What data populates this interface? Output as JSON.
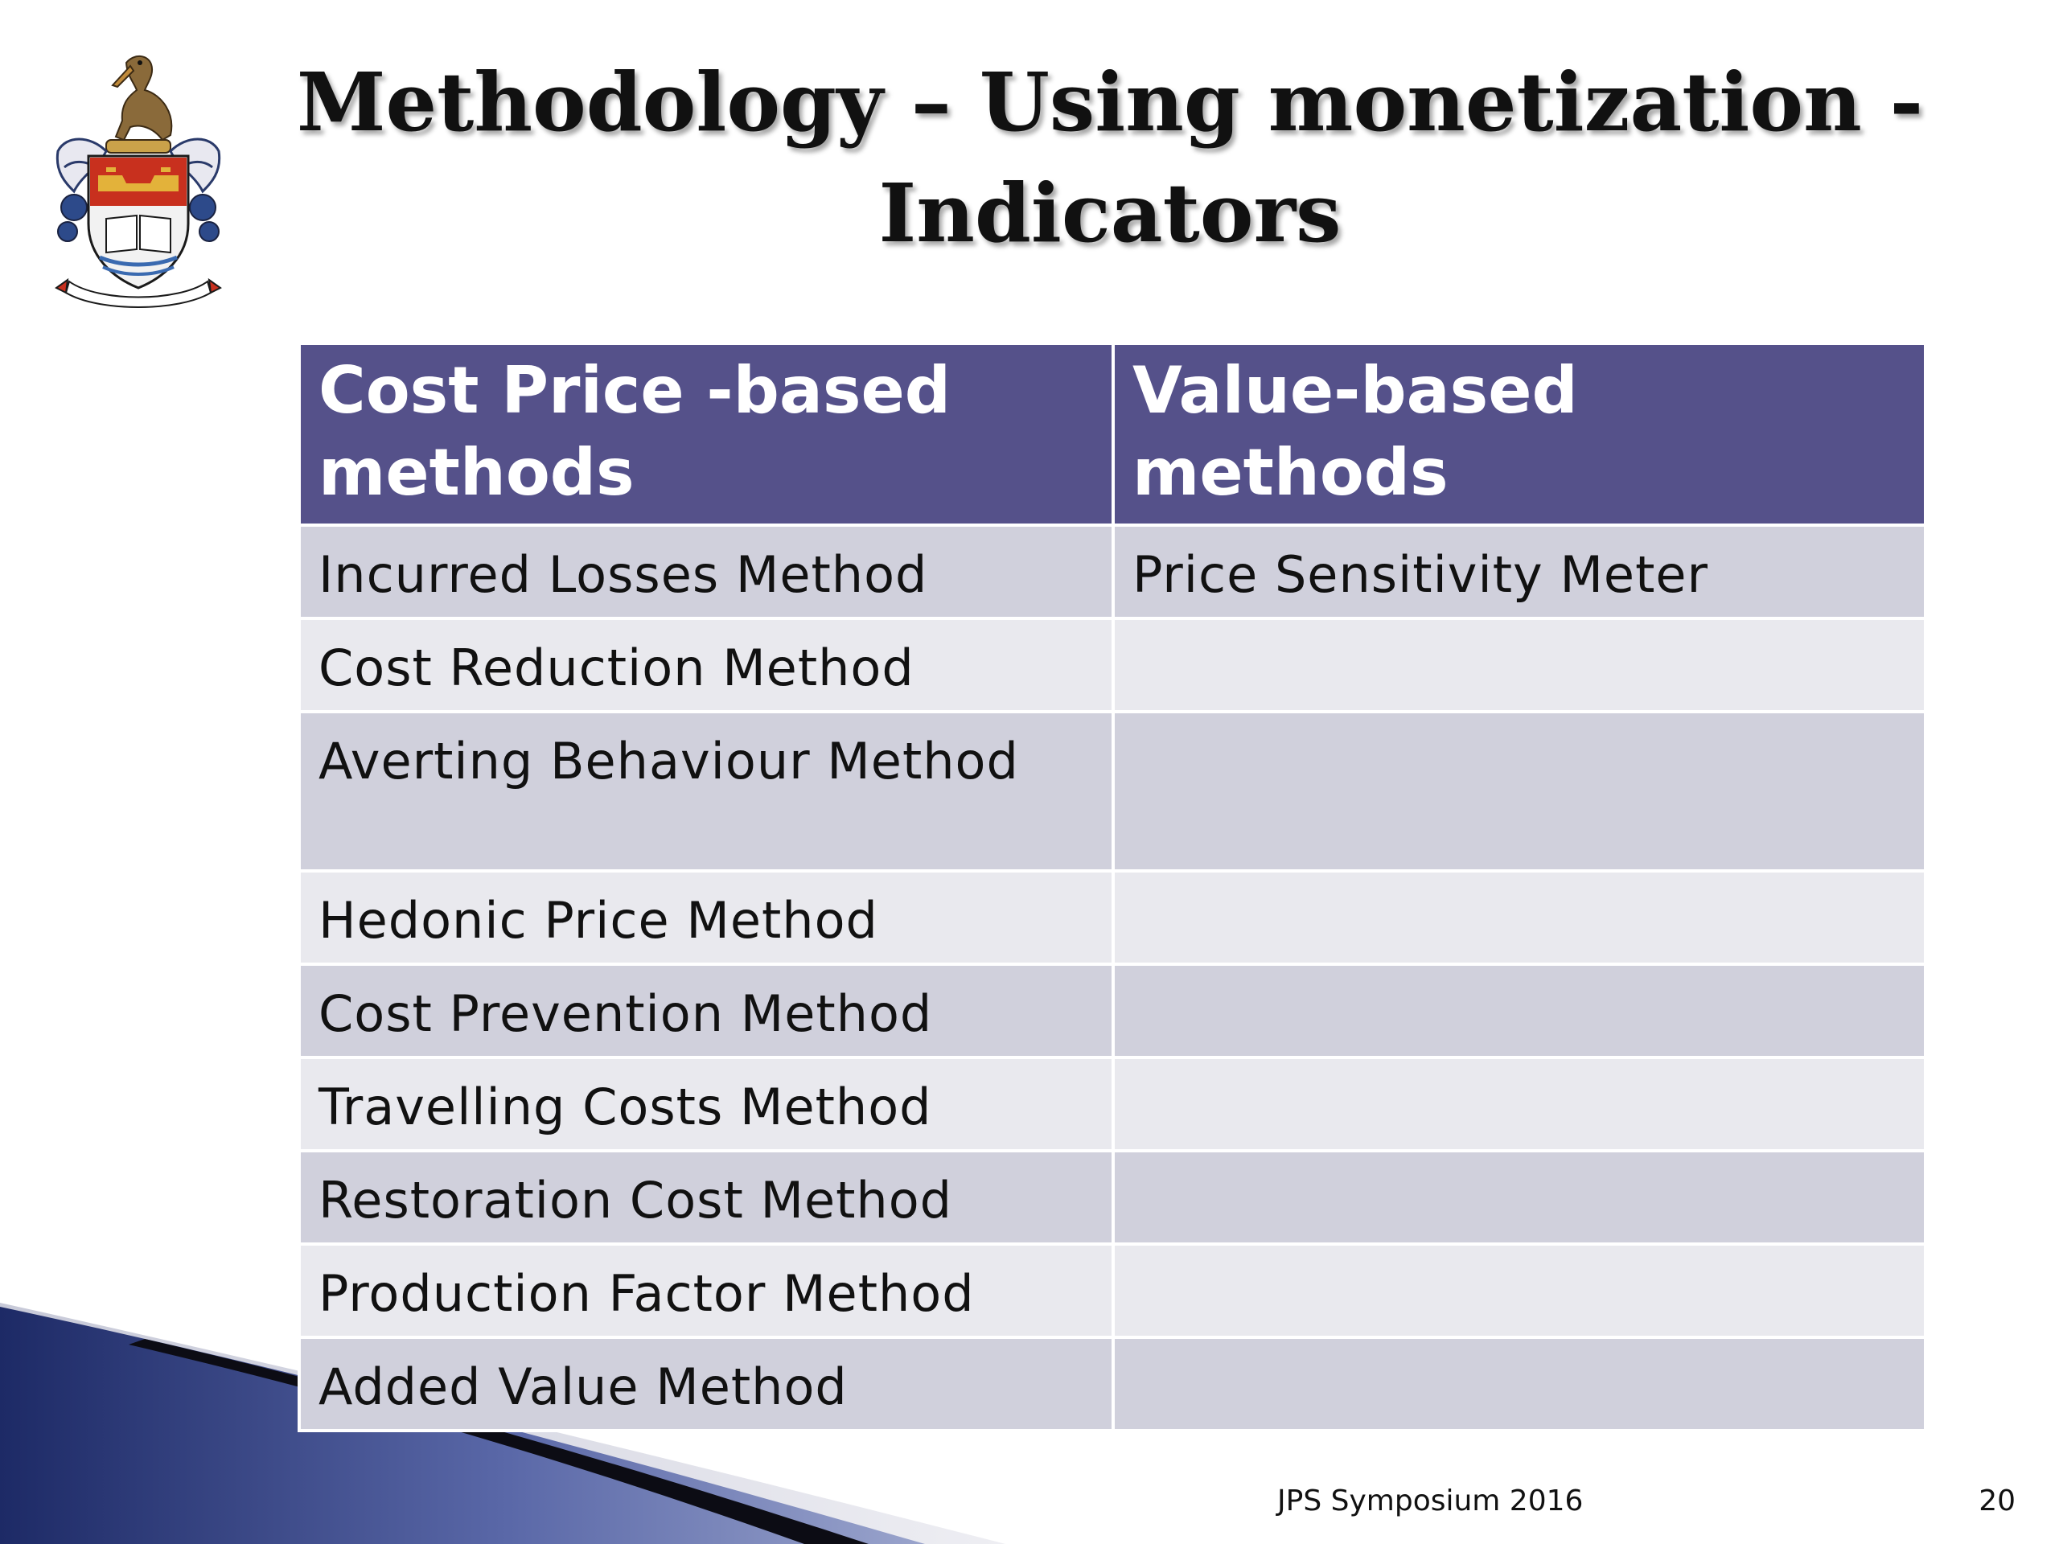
{
  "slide": {
    "title_lines": [
      "Methodology – Using monetization -",
      "Indicators"
    ],
    "footer": "JPS Symposium 2016",
    "page_number": "20",
    "crest_icon": "university-coat-of-arms-icon"
  },
  "table": {
    "headers": [
      "Cost Price -based methods",
      "Value-based methods"
    ],
    "rows": [
      [
        "Incurred Losses Method",
        "Price Sensitivity Meter"
      ],
      [
        "Cost Reduction Method",
        ""
      ],
      [
        "Averting Behaviour Method",
        ""
      ],
      [
        "Hedonic Price Method",
        ""
      ],
      [
        "Cost Prevention Method",
        ""
      ],
      [
        "Travelling Costs Method",
        ""
      ],
      [
        "Restoration Cost Method",
        ""
      ],
      [
        "Production Factor Method",
        ""
      ],
      [
        "Added Value Method",
        ""
      ]
    ]
  },
  "colors": {
    "header_fill": "#55518a",
    "row_odd": "#d0d0dc",
    "row_even": "#e9e9ee",
    "swoosh": "#2f3a78"
  }
}
